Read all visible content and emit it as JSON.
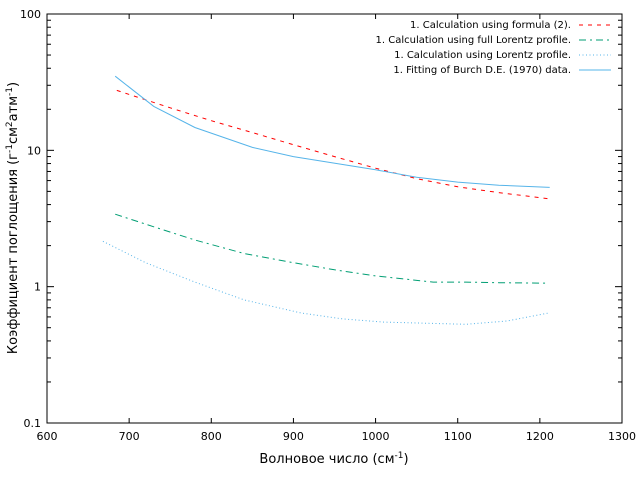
{
  "chart_data": {
    "type": "line",
    "xlabel": {
      "main": "Волновое число (см",
      "sup": "-1",
      "tail": ")"
    },
    "ylabel": {
      "parts": [
        {
          "t": "Коэффициент поглощения (г"
        },
        {
          "t": "-1",
          "sup": true
        },
        {
          "t": "см"
        },
        {
          "t": "2",
          "sup": true
        },
        {
          "t": "атм"
        },
        {
          "t": "-1",
          "sup": true
        },
        {
          "t": ")"
        }
      ]
    },
    "xlim": [
      600,
      1300
    ],
    "ylim": [
      0.1,
      100
    ],
    "yscale": "log",
    "grid": false,
    "legend_position": "top-right",
    "xticks": [
      600,
      700,
      800,
      900,
      1000,
      1100,
      1200,
      1300
    ],
    "xtick_labels": [
      "600",
      "700",
      "800",
      "900",
      "1000",
      "1100",
      "1200",
      "1300"
    ],
    "yticks": [
      0.1,
      1,
      10,
      100
    ],
    "ytick_labels": [
      "0.1",
      "1",
      "10",
      "100"
    ],
    "series": [
      {
        "name": "1. Calculation using formula (2).",
        "color": "#ff0000",
        "dash": "dashed",
        "x": [
          685,
          750,
          800,
          850,
          900,
          950,
          1000,
          1050,
          1100,
          1150,
          1212
        ],
        "y": [
          27.5,
          20.5,
          16.5,
          13.5,
          11.0,
          9.0,
          7.4,
          6.2,
          5.4,
          4.9,
          4.4
        ]
      },
      {
        "name": "1. Calculation using full Lorentz profile.",
        "color": "#009e73",
        "dash": "dashdot",
        "x": [
          683,
          730,
          780,
          840,
          900,
          950,
          1000,
          1070,
          1110,
          1150,
          1210
        ],
        "y": [
          3.4,
          2.75,
          2.2,
          1.75,
          1.5,
          1.33,
          1.2,
          1.08,
          1.08,
          1.07,
          1.06
        ]
      },
      {
        "name": "1. Calculation using Lorentz profile.",
        "color": "#56b4e9",
        "dash": "dotted",
        "x": [
          668,
          720,
          780,
          840,
          910,
          960,
          1010,
          1060,
          1110,
          1160,
          1210
        ],
        "y": [
          2.15,
          1.5,
          1.08,
          0.8,
          0.64,
          0.58,
          0.55,
          0.54,
          0.53,
          0.56,
          0.64
        ]
      },
      {
        "name": "1. Fitting of Burch D.E. (1970) data.",
        "color": "#56b4e9",
        "dash": "solid",
        "x": [
          683,
          730,
          780,
          850,
          900,
          1000,
          1050,
          1100,
          1150,
          1212
        ],
        "y": [
          35,
          21,
          14.7,
          10.5,
          9.0,
          7.2,
          6.35,
          5.85,
          5.55,
          5.35
        ]
      }
    ]
  }
}
